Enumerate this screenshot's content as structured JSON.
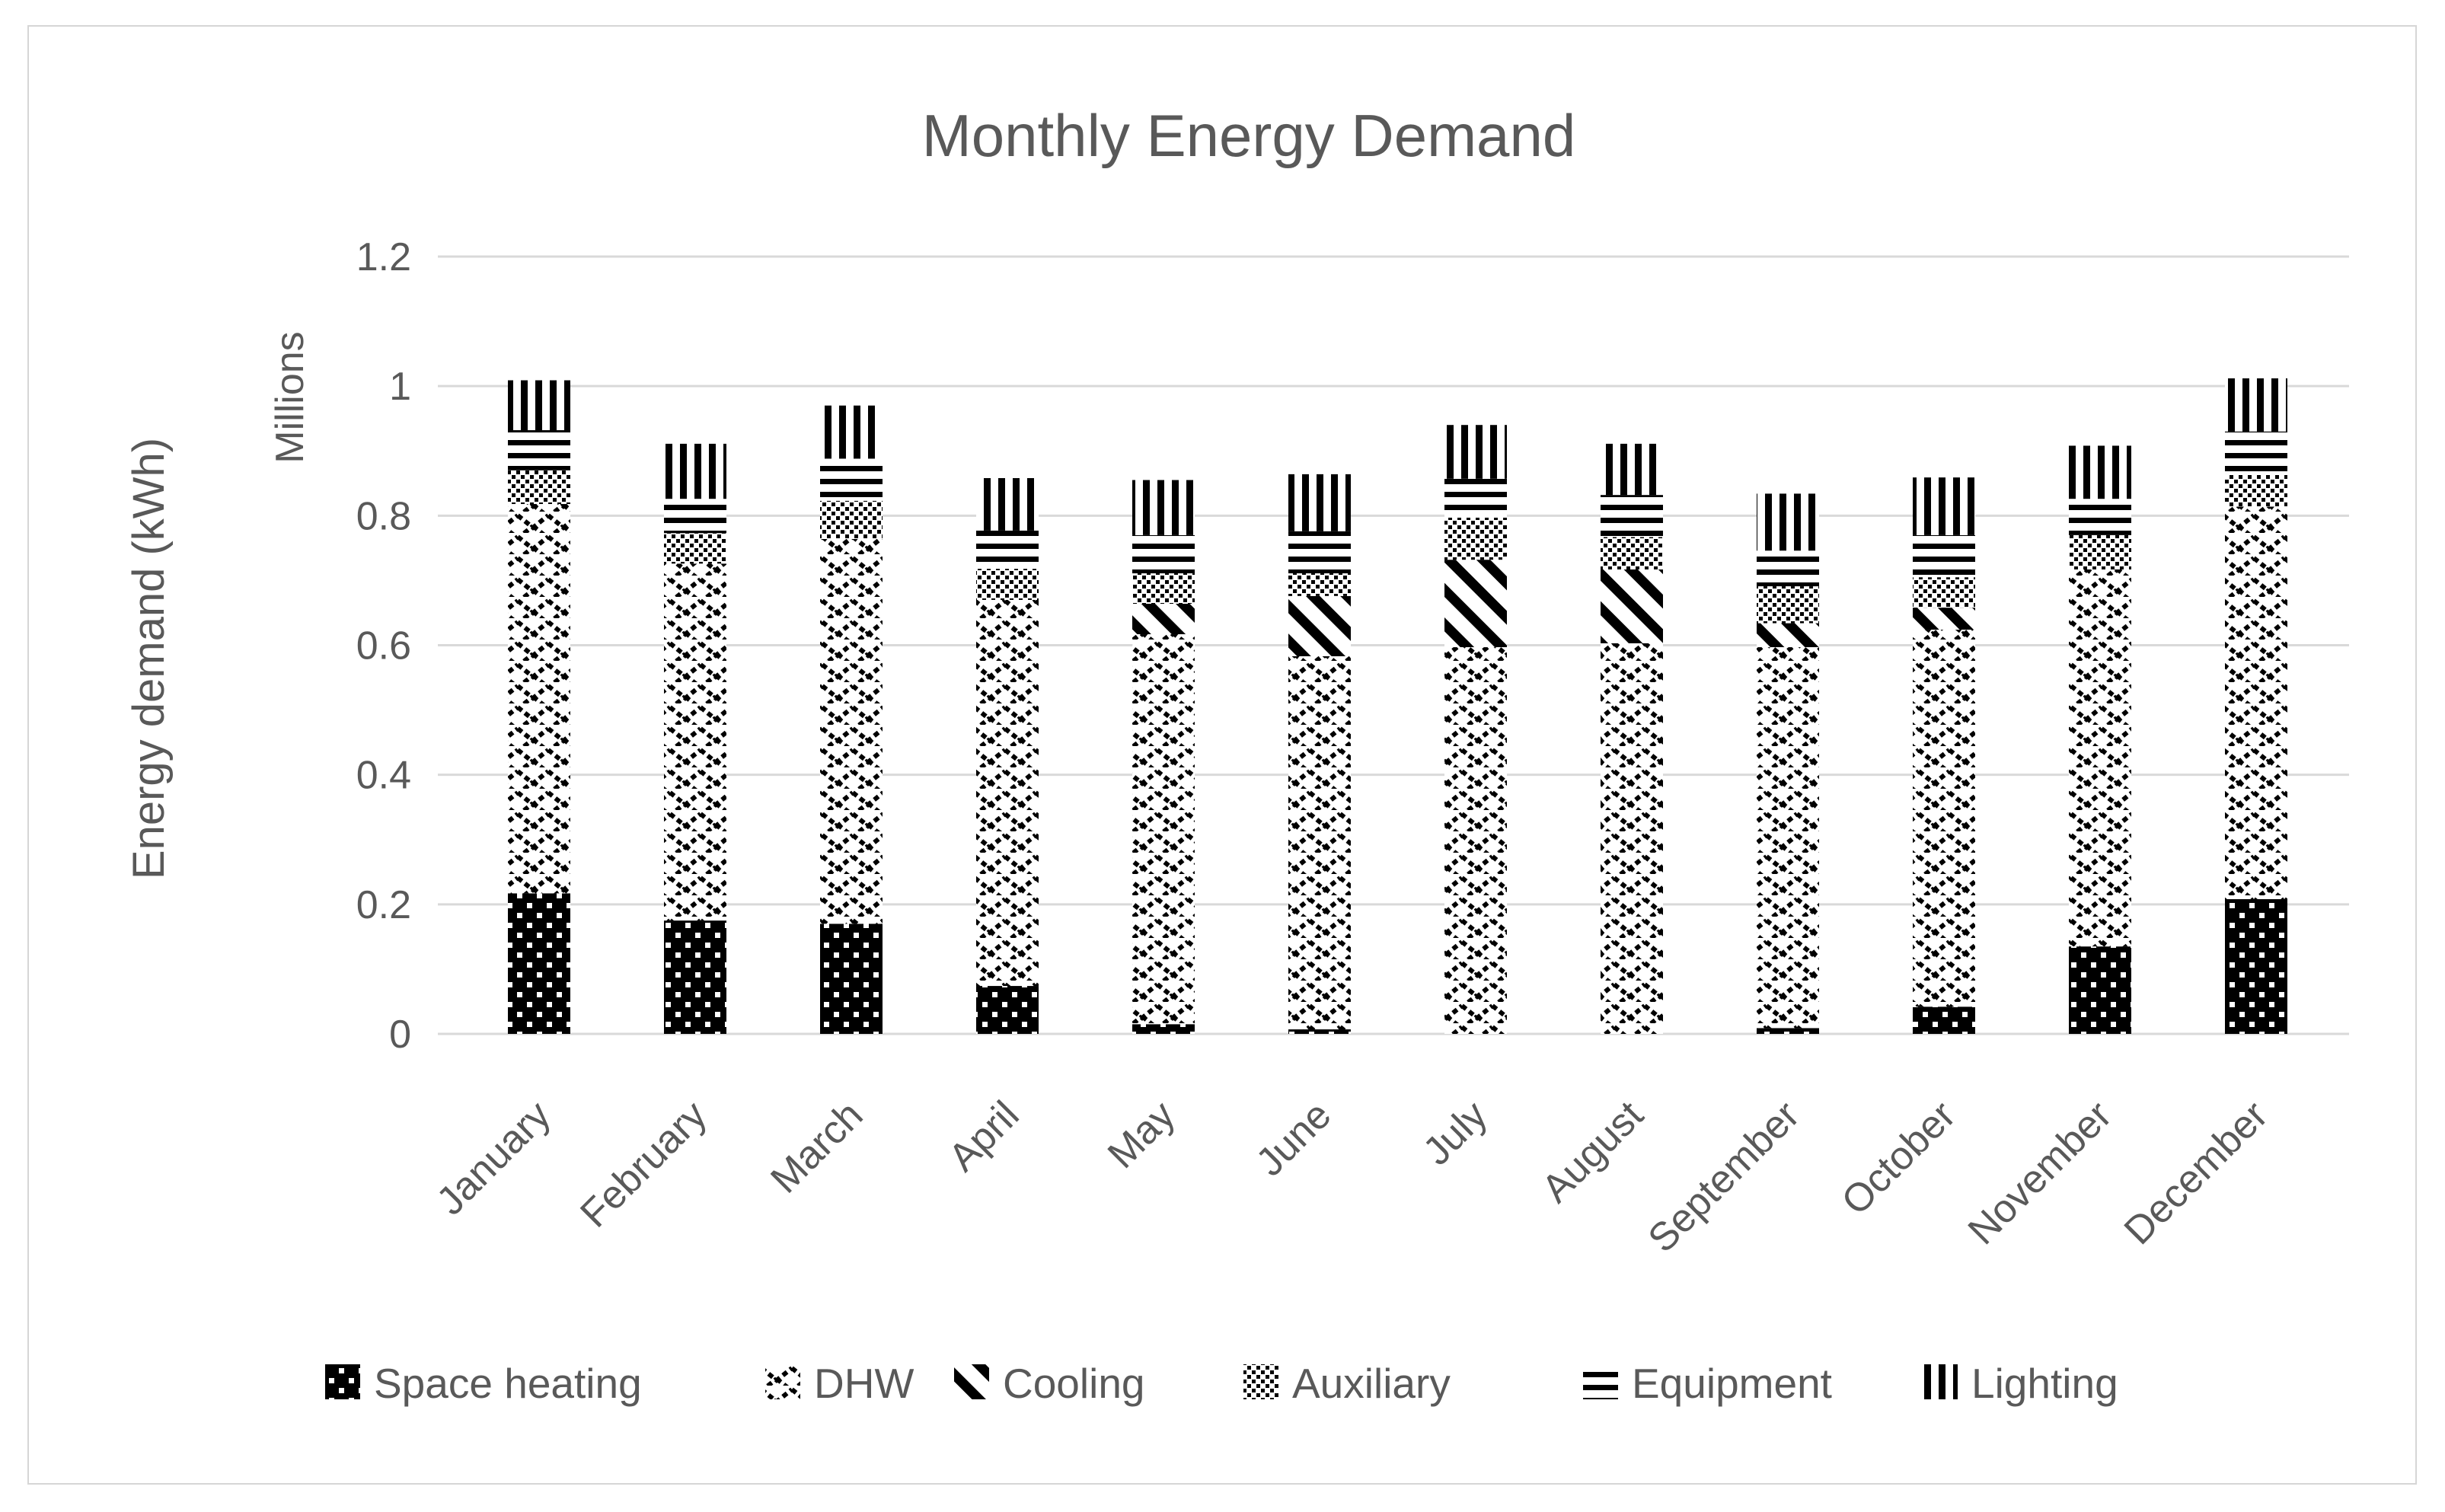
{
  "chart_data": {
    "type": "bar",
    "stacked": true,
    "title": "Monthly Energy Demand",
    "ylabel": "Energy demand (kWh)",
    "y_units_label": "Millions",
    "xlabel": "",
    "categories": [
      "January",
      "February",
      "March",
      "April",
      "May",
      "June",
      "July",
      "August",
      "September",
      "October",
      "November",
      "December"
    ],
    "series": [
      {
        "name": "Space heating",
        "pattern": "black-with-white-dots",
        "values": [
          0.217,
          0.175,
          0.17,
          0.074,
          0.015,
          0.007,
          0,
          0,
          0.009,
          0.042,
          0.135,
          0.208
        ]
      },
      {
        "name": "DHW",
        "pattern": "zigzag-chevron",
        "values": [
          0.601,
          0.551,
          0.594,
          0.596,
          0.602,
          0.576,
          0.597,
          0.603,
          0.588,
          0.582,
          0.582,
          0.606
        ]
      },
      {
        "name": "Cooling",
        "pattern": "wide-downward-diagonal",
        "values": [
          0,
          0,
          0,
          0,
          0.047,
          0.093,
          0.135,
          0.114,
          0.037,
          0.034,
          0,
          0
        ]
      },
      {
        "name": "Auxiliary",
        "pattern": "checker-dots",
        "values": [
          0.052,
          0.047,
          0.059,
          0.048,
          0.047,
          0.035,
          0.065,
          0.05,
          0.057,
          0.047,
          0.053,
          0.05
        ]
      },
      {
        "name": "Equipment",
        "pattern": "horizontal-stripes",
        "values": [
          0.062,
          0.053,
          0.065,
          0.059,
          0.059,
          0.065,
          0.06,
          0.065,
          0.055,
          0.065,
          0.056,
          0.066
        ]
      },
      {
        "name": "Lighting",
        "pattern": "vertical-stripes",
        "values": [
          0.077,
          0.085,
          0.082,
          0.081,
          0.085,
          0.088,
          0.083,
          0.079,
          0.088,
          0.089,
          0.082,
          0.082
        ]
      }
    ],
    "y_ticks": [
      {
        "value": 0,
        "label": "0"
      },
      {
        "value": 0.2,
        "label": "0.2"
      },
      {
        "value": 0.4,
        "label": "0.4"
      },
      {
        "value": 0.6,
        "label": "0.6"
      },
      {
        "value": 0.8,
        "label": "0.8"
      },
      {
        "value": 1,
        "label": "1"
      },
      {
        "value": 1.2,
        "label": "1.2"
      }
    ],
    "ylim": [
      0,
      1.2
    ],
    "grid": true,
    "legend_position": "bottom",
    "colors": {
      "text": "#595959",
      "gridline": "#d9d9d9",
      "pattern_foreground": "#000000",
      "background": "#ffffff"
    }
  }
}
